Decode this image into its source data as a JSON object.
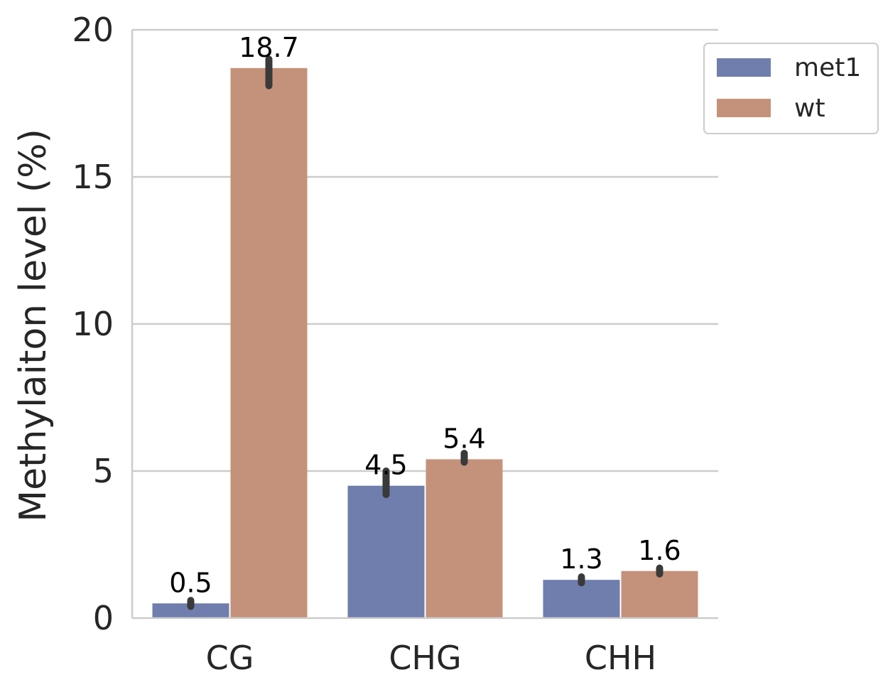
{
  "chart_data": {
    "type": "bar",
    "categories": [
      "CG",
      "CHG",
      "CHH"
    ],
    "series": [
      {
        "name": "met1",
        "color": "#6f7eac",
        "values": [
          0.5,
          4.5,
          1.3
        ],
        "err_low": [
          0.4,
          4.2,
          1.2
        ],
        "err_high": [
          0.6,
          5.0,
          1.4
        ]
      },
      {
        "name": "wt",
        "color": "#c4927a",
        "values": [
          18.7,
          5.4,
          1.6
        ],
        "err_low": [
          18.1,
          5.3,
          1.5
        ],
        "err_high": [
          19.0,
          5.6,
          1.7
        ]
      }
    ],
    "bar_labels": [
      [
        "0.5",
        "4.5",
        "1.3"
      ],
      [
        "18.7",
        "5.4",
        "1.6"
      ]
    ],
    "yticks": [
      0,
      5,
      10,
      15,
      20
    ],
    "ytick_labels": [
      "0",
      "5",
      "10",
      "15",
      "20"
    ],
    "ylabel": "Methylaiton level (%)",
    "xlabel": "",
    "ylim": [
      0,
      20
    ],
    "grid": "horizontal",
    "legend": {
      "placement": "top-right outside",
      "entries": [
        "met1",
        "wt"
      ]
    },
    "errorbar_color": "#3a3a3a",
    "grid_color": "#cccccc"
  }
}
